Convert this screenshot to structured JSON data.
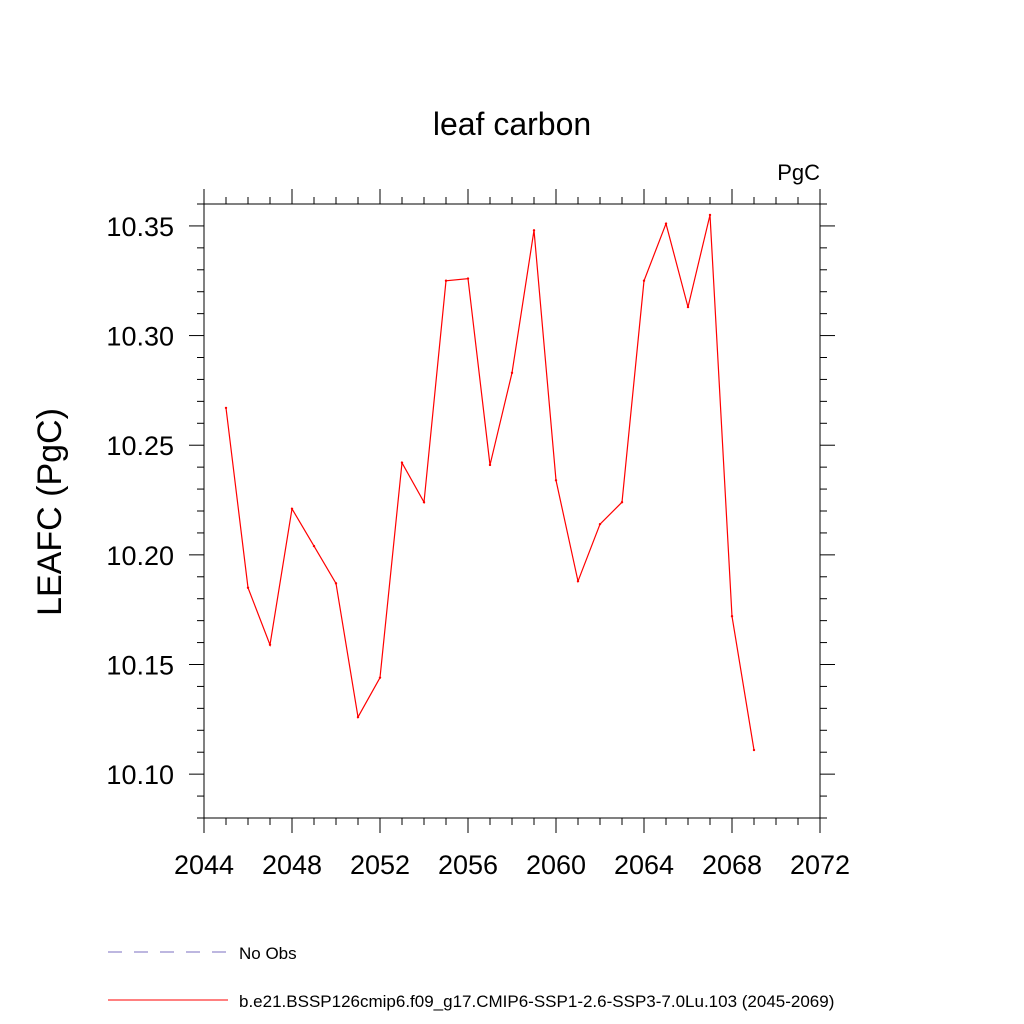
{
  "chart_data": {
    "type": "line",
    "title": "leaf carbon",
    "units_label": "PgC",
    "ylabel": "LEAFC  (PgC)",
    "xlabel": "",
    "xlim": [
      2044,
      2072
    ],
    "ylim": [
      10.08,
      10.36
    ],
    "x_ticks": [
      "2044",
      "2048",
      "2052",
      "2056",
      "2060",
      "2064",
      "2068",
      "2072"
    ],
    "x_tick_values": [
      2044,
      2048,
      2052,
      2056,
      2060,
      2064,
      2068,
      2072
    ],
    "y_ticks": [
      "10.10",
      "10.15",
      "10.20",
      "10.25",
      "10.30",
      "10.35"
    ],
    "y_tick_values": [
      10.1,
      10.15,
      10.2,
      10.25,
      10.3,
      10.35
    ],
    "grid": false,
    "legend_position": "bottom",
    "series": [
      {
        "name": "b.e21.BSSP126cmip6.f09_g17.CMIP6-SSP1-2.6-SSP3-7.0Lu.103 (2045-2069)",
        "color": "#ff0000",
        "style": "solid",
        "x": [
          2045,
          2046,
          2047,
          2048,
          2049,
          2050,
          2051,
          2052,
          2053,
          2054,
          2055,
          2056,
          2057,
          2058,
          2059,
          2060,
          2061,
          2062,
          2063,
          2064,
          2065,
          2066,
          2067,
          2068,
          2069
        ],
        "values": [
          10.267,
          10.185,
          10.159,
          10.221,
          10.204,
          10.187,
          10.126,
          10.144,
          10.242,
          10.224,
          10.325,
          10.326,
          10.241,
          10.283,
          10.348,
          10.234,
          10.188,
          10.214,
          10.224,
          10.325,
          10.351,
          10.313,
          10.355,
          10.172,
          10.111
        ]
      }
    ],
    "legend": [
      {
        "label": "No Obs",
        "color": "#7b6fc0",
        "style": "dashed"
      },
      {
        "label": "b.e21.BSSP126cmip6.f09_g17.CMIP6-SSP1-2.6-SSP3-7.0Lu.103 (2045-2069)",
        "color": "#ff0000",
        "style": "solid"
      }
    ]
  }
}
